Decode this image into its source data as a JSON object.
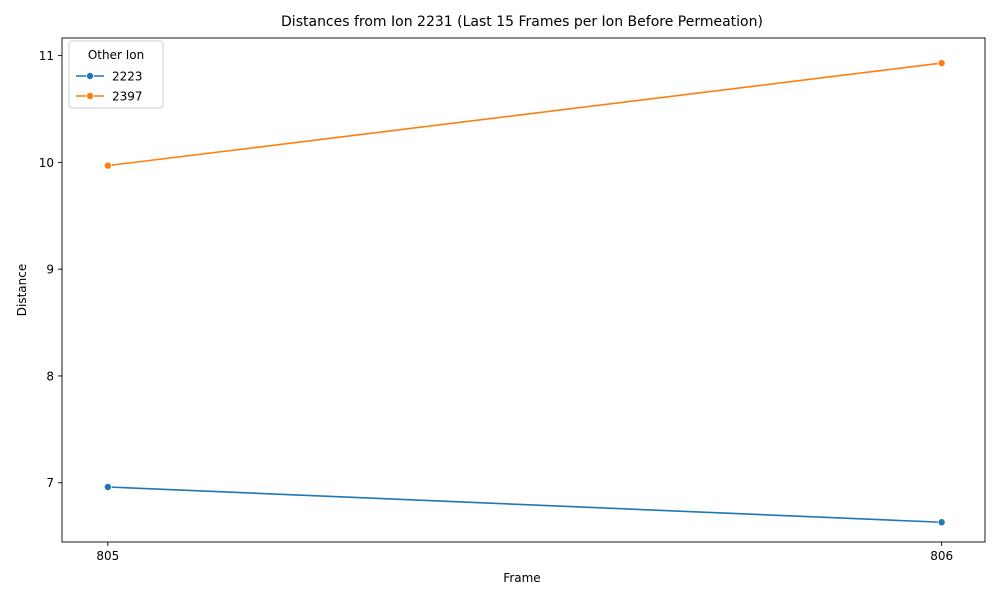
{
  "chart_data": {
    "type": "line",
    "title": "Distances from Ion 2231 (Last 15 Frames per Ion Before Permeation)",
    "xlabel": "Frame",
    "ylabel": "Distance",
    "x": [
      805,
      806
    ],
    "xticks": [
      "805",
      "806"
    ],
    "yticks": [
      7,
      8,
      9,
      10,
      11
    ],
    "xlim": [
      804.945,
      806.052
    ],
    "ylim": [
      6.445,
      11.165
    ],
    "grid": false,
    "legend": {
      "title": "Other Ion",
      "position": "top-left"
    },
    "series": [
      {
        "name": "2223",
        "color": "#1f77b4",
        "values": [
          6.96,
          6.63
        ]
      },
      {
        "name": "2397",
        "color": "#ff7f0e",
        "values": [
          9.97,
          10.93
        ]
      }
    ]
  }
}
